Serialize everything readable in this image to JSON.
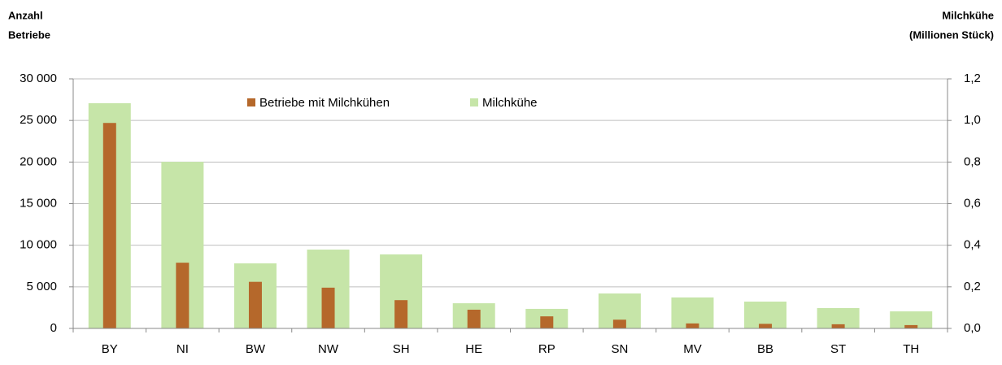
{
  "chart_data": {
    "type": "bar",
    "y_label": [
      "Anzahl",
      "Betriebe"
    ],
    "y2_label": [
      "Milchkühe",
      "(Millionen Stück)"
    ],
    "categories": [
      "BY",
      "NI",
      "BW",
      "NW",
      "SH",
      "HE",
      "RP",
      "SN",
      "MV",
      "BB",
      "ST",
      "TH"
    ],
    "series": [
      {
        "name": "Milchkühe",
        "color": "#c6e5a8",
        "axis": "y2",
        "values": [
          1.083,
          0.801,
          0.313,
          0.379,
          0.356,
          0.121,
          0.094,
          0.168,
          0.149,
          0.129,
          0.098,
          0.082
        ]
      },
      {
        "name": "Betriebe mit Milchkühen",
        "color": "#b5682b",
        "values": [
          24700,
          7900,
          5600,
          4900,
          3400,
          2250,
          1450,
          1050,
          600,
          550,
          500,
          400
        ]
      }
    ],
    "ylim": [
      0,
      30000
    ],
    "yticks": [
      0,
      {
        "value": 5000,
        "label": "5 000"
      },
      {
        "value": 10000,
        "label": "10 000"
      },
      {
        "value": 15000,
        "label": "15 000"
      },
      {
        "value": 20000,
        "label": "20 000"
      },
      {
        "value": 25000,
        "label": "25 000"
      },
      {
        "value": 30000,
        "label": "30 000"
      }
    ],
    "y2lim": [
      0,
      1.2
    ],
    "y2ticks": [
      {
        "value": 0,
        "label": "0,0"
      },
      {
        "value": 0.2,
        "label": "0,2"
      },
      {
        "value": 0.4,
        "label": "0,4"
      },
      {
        "value": 0.6,
        "label": "0,6"
      },
      {
        "value": 0.8,
        "label": "0,8"
      },
      {
        "value": 1.0,
        "label": "1,0"
      },
      {
        "value": 1.2,
        "label": "1,2"
      }
    ],
    "grid": true
  }
}
